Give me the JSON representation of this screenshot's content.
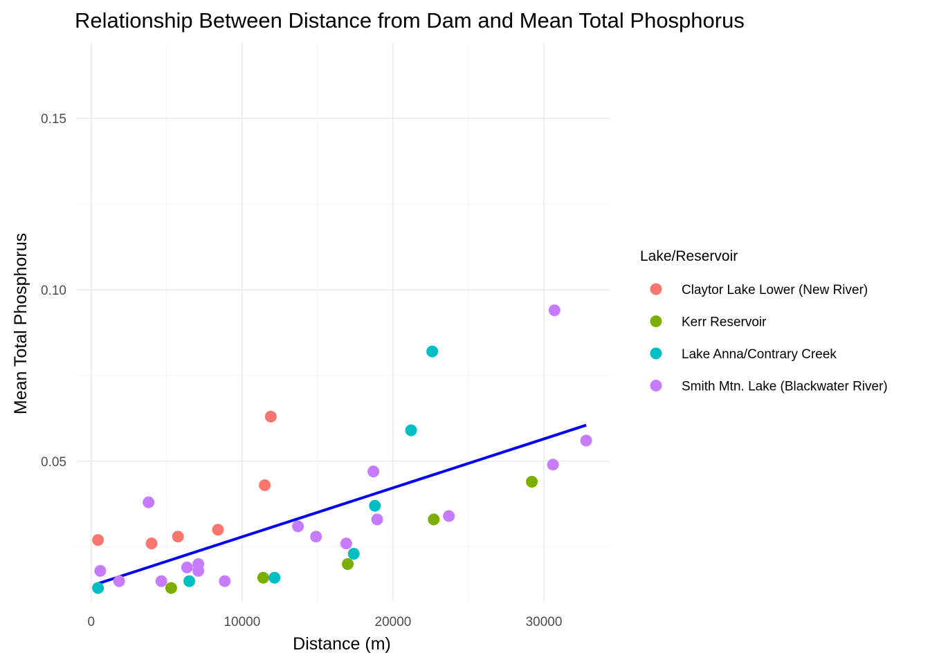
{
  "chart_data": {
    "type": "scatter",
    "title": "Relationship Between Distance from Dam and Mean Total Phosphorus",
    "xlabel": "Distance (m)",
    "ylabel": "Mean Total Phosphorus",
    "xlim": [
      -1000,
      34400
    ],
    "ylim": [
      0.009,
      0.172
    ],
    "x_ticks": [
      0,
      10000,
      20000,
      30000
    ],
    "x_tick_labels": [
      "0",
      "10000",
      "20000",
      "30000"
    ],
    "x_minor_ticks": [
      5000,
      15000,
      25000
    ],
    "y_ticks": [
      0.05,
      0.1,
      0.15
    ],
    "y_tick_labels": [
      "0.05",
      "0.10",
      "0.15"
    ],
    "y_minor_ticks": [
      0.025,
      0.075,
      0.125
    ],
    "grid": true,
    "legend": {
      "title": "Lake/Reservoir",
      "position": "right"
    },
    "series": [
      {
        "name": "Claytor Lake Lower (New River)",
        "color": "#F8766D",
        "points": [
          {
            "x": 450,
            "y": 0.027
          },
          {
            "x": 4000,
            "y": 0.026
          },
          {
            "x": 5750,
            "y": 0.028
          },
          {
            "x": 8400,
            "y": 0.03
          },
          {
            "x": 11500,
            "y": 0.043
          },
          {
            "x": 11900,
            "y": 0.063
          }
        ]
      },
      {
        "name": "Kerr Reservoir",
        "color": "#7CAE00",
        "points": [
          {
            "x": 5300,
            "y": 0.013
          },
          {
            "x": 11400,
            "y": 0.016
          },
          {
            "x": 17000,
            "y": 0.02
          },
          {
            "x": 22700,
            "y": 0.033
          },
          {
            "x": 29200,
            "y": 0.044
          }
        ]
      },
      {
        "name": "Lake Anna/Contrary Creek",
        "color": "#00BFC4",
        "points": [
          {
            "x": 450,
            "y": 0.013
          },
          {
            "x": 6500,
            "y": 0.015
          },
          {
            "x": 12150,
            "y": 0.016
          },
          {
            "x": 17400,
            "y": 0.023
          },
          {
            "x": 18800,
            "y": 0.037
          },
          {
            "x": 21200,
            "y": 0.059
          },
          {
            "x": 22600,
            "y": 0.082
          }
        ]
      },
      {
        "name": "Smith Mtn. Lake (Blackwater River)",
        "color": "#C77CFF",
        "points": [
          {
            "x": 600,
            "y": 0.018
          },
          {
            "x": 1850,
            "y": 0.015
          },
          {
            "x": 3800,
            "y": 0.038
          },
          {
            "x": 4650,
            "y": 0.015
          },
          {
            "x": 6350,
            "y": 0.019
          },
          {
            "x": 7100,
            "y": 0.02
          },
          {
            "x": 7100,
            "y": 0.018
          },
          {
            "x": 8850,
            "y": 0.015
          },
          {
            "x": 13700,
            "y": 0.031
          },
          {
            "x": 14900,
            "y": 0.028
          },
          {
            "x": 16900,
            "y": 0.026
          },
          {
            "x": 18700,
            "y": 0.047
          },
          {
            "x": 18950,
            "y": 0.033
          },
          {
            "x": 23700,
            "y": 0.034
          },
          {
            "x": 30600,
            "y": 0.049
          },
          {
            "x": 30700,
            "y": 0.094
          },
          {
            "x": 32800,
            "y": 0.056
          }
        ]
      }
    ],
    "trend_line": {
      "type": "linear",
      "color": "#0000FF",
      "x": [
        450,
        32800
      ],
      "y": [
        0.0143,
        0.0605
      ]
    }
  }
}
